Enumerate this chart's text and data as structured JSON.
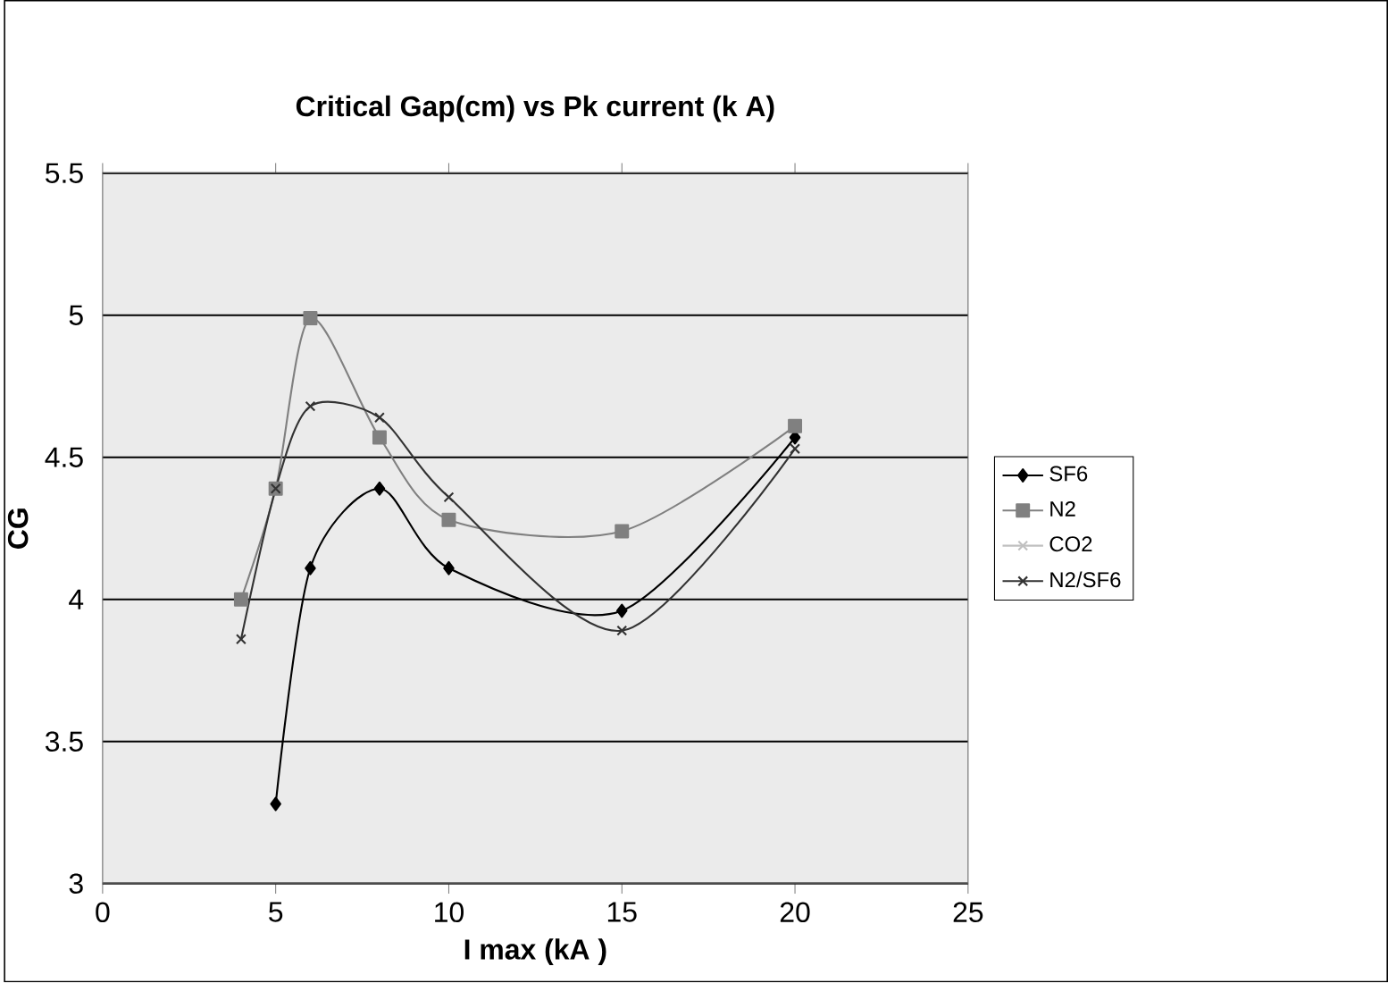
{
  "chart_data": {
    "type": "line",
    "title": "Critical Gap(cm) vs Pk current (k A)",
    "xlabel": "I max (kA )",
    "ylabel": "CG",
    "x": [
      4,
      5,
      6,
      8,
      10,
      15,
      20
    ],
    "series": [
      {
        "name": "SF6",
        "color": "#000000",
        "marker": "diamond",
        "values": [
          null,
          3.28,
          4.11,
          4.39,
          4.11,
          3.96,
          4.57
        ]
      },
      {
        "name": "N2",
        "color": "#808080",
        "marker": "square",
        "values": [
          4.0,
          4.39,
          4.99,
          4.57,
          4.28,
          4.24,
          4.61
        ]
      },
      {
        "name": "CO2",
        "color": "#c0c0c0",
        "marker": "cross",
        "values": [
          null,
          null,
          null,
          null,
          null,
          null,
          null
        ]
      },
      {
        "name": "N2/SF6",
        "color": "#333333",
        "marker": "cross",
        "values": [
          3.86,
          4.39,
          4.68,
          4.64,
          4.36,
          3.89,
          4.53
        ]
      }
    ],
    "xlim": [
      0,
      25
    ],
    "xticks": [
      0,
      5,
      10,
      15,
      20,
      25
    ],
    "ylim": [
      3,
      5.5
    ],
    "yticks": [
      3,
      3.5,
      4,
      4.5,
      5,
      5.5
    ],
    "grid": "y",
    "legend": "right"
  }
}
